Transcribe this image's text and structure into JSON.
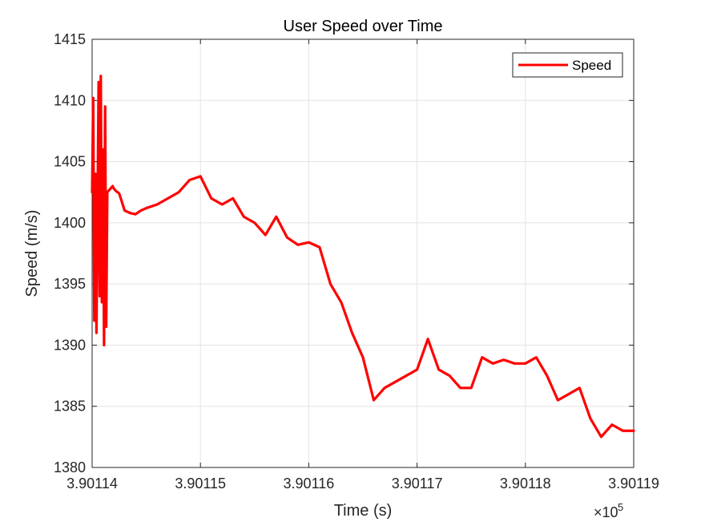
{
  "chart_data": {
    "type": "line",
    "title": "User Speed over Time",
    "xlabel": "Time (s)",
    "ylabel": "Speed (m/s)",
    "x_exponent_base": "×10",
    "x_exponent_power": "5",
    "xlim": [
      3.90114,
      3.90119
    ],
    "ylim": [
      1380,
      1415
    ],
    "x_tick_values": [
      3.90114,
      3.90115,
      3.90116,
      3.90117,
      3.90118,
      3.90119
    ],
    "x_tick_labels": [
      "3.90114",
      "3.90115",
      "3.90116",
      "3.90117",
      "3.90118",
      "3.90119"
    ],
    "y_tick_values": [
      1380,
      1385,
      1390,
      1395,
      1400,
      1405,
      1410,
      1415
    ],
    "y_tick_labels": [
      "1380",
      "1385",
      "1390",
      "1395",
      "1400",
      "1405",
      "1410",
      "1415"
    ],
    "grid": true,
    "legend_position": "top-right",
    "series": [
      {
        "name": "Speed",
        "color": "#ff0000",
        "x": [
          3.90114,
          3.9011401,
          3.9011402,
          3.9011403,
          3.9011404,
          3.9011405,
          3.9011406,
          3.9011407,
          3.9011408,
          3.9011409,
          3.901141,
          3.9011411,
          3.9011412,
          3.9011413,
          3.9011414,
          3.9011415,
          3.9011416,
          3.9011417,
          3.9011418,
          3.9011419,
          3.901142,
          3.9011421,
          3.9011422,
          3.9011425,
          3.901143,
          3.9011435,
          3.901144,
          3.9011445,
          3.901145,
          3.901146,
          3.901147,
          3.901148,
          3.901149,
          3.90115,
          3.901151,
          3.901152,
          3.901153,
          3.901154,
          3.901155,
          3.901156,
          3.901157,
          3.901158,
          3.901159,
          3.90116,
          3.901161,
          3.901162,
          3.901163,
          3.901164,
          3.901165,
          3.901166,
          3.901167,
          3.901168,
          3.901169,
          3.90117,
          3.901171,
          3.901172,
          3.901173,
          3.901174,
          3.901175,
          3.901176,
          3.901177,
          3.901178,
          3.901179,
          3.90118,
          3.901181,
          3.901182,
          3.901183,
          3.901184,
          3.901185,
          3.901186,
          3.901187,
          3.901188,
          3.901189,
          3.90119
        ],
        "values": [
          1402.5,
          1410.2,
          1392.0,
          1404.0,
          1391.0,
          1401.5,
          1411.5,
          1394.0,
          1412.0,
          1393.5,
          1406.0,
          1390.0,
          1409.5,
          1391.5,
          1402.5,
          1402.6,
          1402.7,
          1402.8,
          1402.9,
          1403.0,
          1402.8,
          1402.7,
          1402.6,
          1402.4,
          1401.0,
          1400.8,
          1400.7,
          1401.0,
          1401.2,
          1401.5,
          1402.0,
          1402.5,
          1403.5,
          1403.8,
          1402.0,
          1401.5,
          1402.0,
          1400.5,
          1400.0,
          1399.0,
          1400.5,
          1398.8,
          1398.2,
          1398.4,
          1398.0,
          1395.0,
          1393.5,
          1391.0,
          1389.0,
          1385.5,
          1386.5,
          1387.0,
          1387.5,
          1388.0,
          1390.5,
          1388.0,
          1387.5,
          1386.5,
          1386.5,
          1389.0,
          1388.5,
          1388.8,
          1388.5,
          1388.5,
          1389.0,
          1387.5,
          1385.5,
          1386.0,
          1386.5,
          1384.0,
          1382.5,
          1383.5,
          1383.0,
          1383.0
        ]
      }
    ]
  }
}
